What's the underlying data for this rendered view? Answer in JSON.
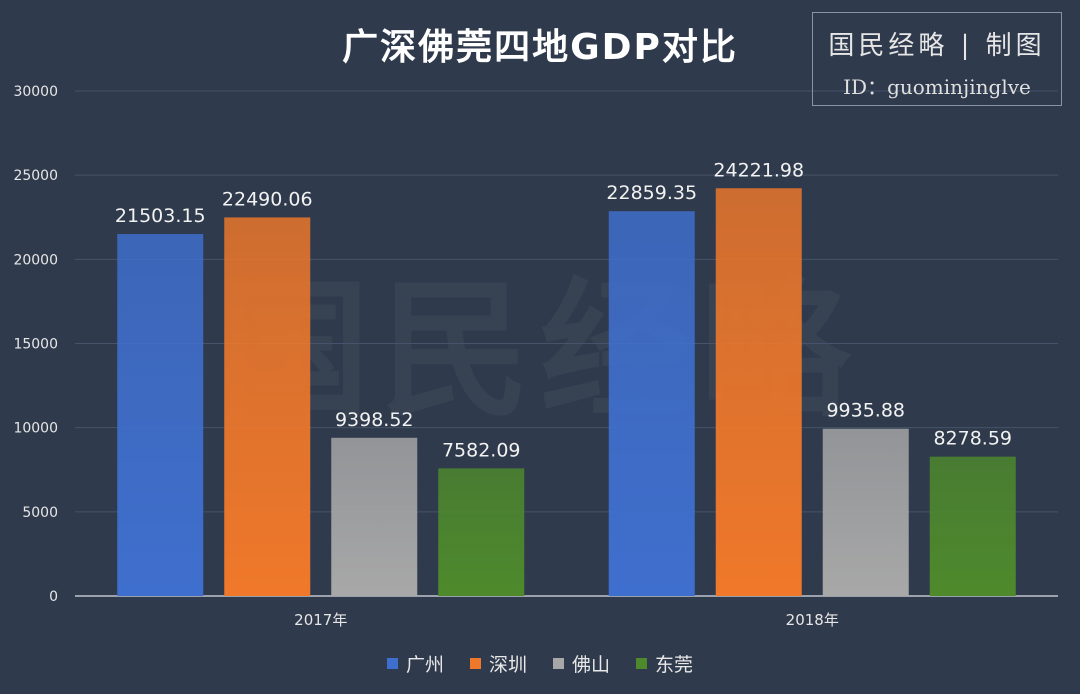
{
  "chart_data": {
    "type": "bar",
    "title": "广深佛莞四地GDP对比",
    "categories": [
      "2017年",
      "2018年"
    ],
    "series": [
      {
        "name": "广州",
        "values": [
          21503.15,
          22859.35
        ],
        "color": "#3f6fce"
      },
      {
        "name": "深圳",
        "values": [
          22490.06,
          24221.98
        ],
        "color": "#f0782a"
      },
      {
        "name": "佛山",
        "values": [
          9398.52,
          9935.88
        ],
        "color": "#a8a8a8"
      },
      {
        "name": "东莞",
        "values": [
          7582.09,
          8278.59
        ],
        "color": "#4e8a2c"
      }
    ],
    "ylim": [
      0,
      30000
    ],
    "yticks": [
      0,
      5000,
      10000,
      15000,
      20000,
      25000,
      30000
    ],
    "xlabel": "",
    "ylabel": "",
    "grid": true,
    "legend_position": "bottom"
  },
  "watermark": {
    "brand": "国民经略 | 制图",
    "id_text": "ID：guominjinglve",
    "background_text": "国民经略"
  }
}
